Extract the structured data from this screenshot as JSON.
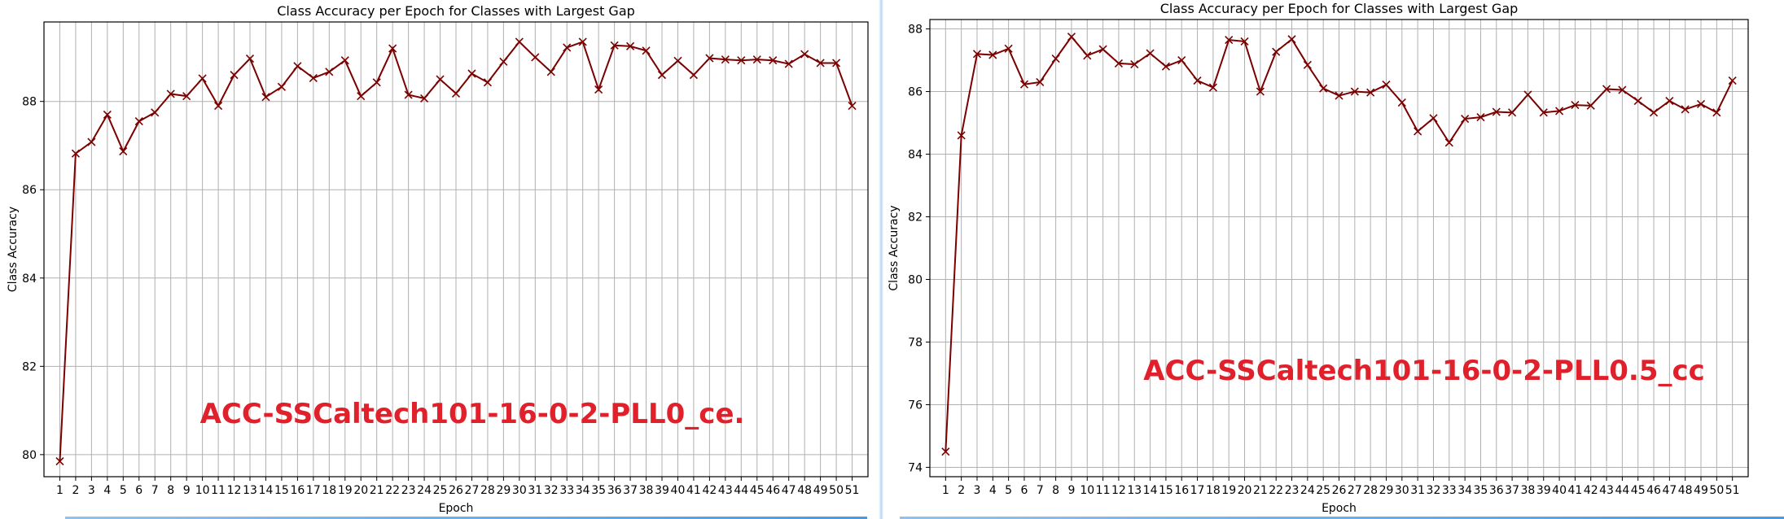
{
  "chart_data": [
    {
      "type": "line",
      "title": "Class Accuracy per Epoch for Classes with Largest Gap",
      "xlabel": "Epoch",
      "ylabel": "Class Accuracy",
      "annotation": "ACC-SSCaltech101-16-0-2-PLL0_ce.",
      "x": [
        1,
        2,
        3,
        4,
        5,
        6,
        7,
        8,
        9,
        10,
        11,
        12,
        13,
        14,
        15,
        16,
        17,
        18,
        19,
        20,
        21,
        22,
        23,
        24,
        25,
        26,
        27,
        28,
        29,
        30,
        31,
        32,
        33,
        34,
        35,
        36,
        37,
        38,
        39,
        40,
        41,
        42,
        43,
        44,
        45,
        46,
        47,
        48,
        49,
        50,
        51
      ],
      "xlim": [
        0,
        52
      ],
      "ylim": [
        79.5,
        89.8
      ],
      "yticks": [
        80,
        82,
        84,
        86,
        88
      ],
      "grid": true,
      "color": "#7b0000",
      "marker": "x",
      "series": [
        {
          "values": [
            79.85,
            86.82,
            87.08,
            87.7,
            86.87,
            87.55,
            87.75,
            88.17,
            88.12,
            88.52,
            87.9,
            88.6,
            88.97,
            88.1,
            88.33,
            88.8,
            88.53,
            88.67,
            88.93,
            88.12,
            88.43,
            89.2,
            88.15,
            88.07,
            88.5,
            88.18,
            88.63,
            88.43,
            88.9,
            89.35,
            89.0,
            88.67,
            89.22,
            89.35,
            88.27,
            89.27,
            89.25,
            89.15,
            88.6,
            88.92,
            88.6,
            88.98,
            88.95,
            88.93,
            88.95,
            88.93,
            88.85,
            89.07,
            88.87,
            88.87,
            87.9
          ]
        }
      ]
    },
    {
      "type": "line",
      "title": "Class Accuracy per Epoch for Classes with Largest Gap",
      "xlabel": "Epoch",
      "ylabel": "Class Accuracy",
      "annotation": "ACC-SSCaltech101-16-0-2-PLL0.5_cc",
      "x": [
        1,
        2,
        3,
        4,
        5,
        6,
        7,
        8,
        9,
        10,
        11,
        12,
        13,
        14,
        15,
        16,
        17,
        18,
        19,
        20,
        21,
        22,
        23,
        24,
        25,
        26,
        27,
        28,
        29,
        30,
        31,
        32,
        33,
        34,
        35,
        36,
        37,
        38,
        39,
        40,
        41,
        42,
        43,
        44,
        45,
        46,
        47,
        48,
        49,
        50,
        51
      ],
      "xlim": [
        0,
        52
      ],
      "ylim": [
        73.7,
        88.3
      ],
      "yticks": [
        74,
        76,
        78,
        80,
        82,
        84,
        86,
        88
      ],
      "grid": true,
      "color": "#7b0000",
      "marker": "x",
      "series": [
        {
          "values": [
            74.5,
            84.6,
            87.2,
            87.17,
            87.37,
            86.23,
            86.3,
            87.05,
            87.75,
            87.15,
            87.35,
            86.9,
            86.87,
            87.22,
            86.8,
            87.0,
            86.35,
            86.13,
            87.65,
            87.6,
            86.0,
            87.27,
            87.67,
            86.85,
            86.1,
            85.87,
            86.0,
            85.97,
            86.22,
            85.65,
            84.73,
            85.15,
            84.37,
            85.13,
            85.18,
            85.35,
            85.33,
            85.9,
            85.33,
            85.38,
            85.57,
            85.55,
            86.08,
            86.05,
            85.7,
            85.33,
            85.7,
            85.43,
            85.6,
            85.33,
            86.35
          ]
        }
      ]
    }
  ]
}
